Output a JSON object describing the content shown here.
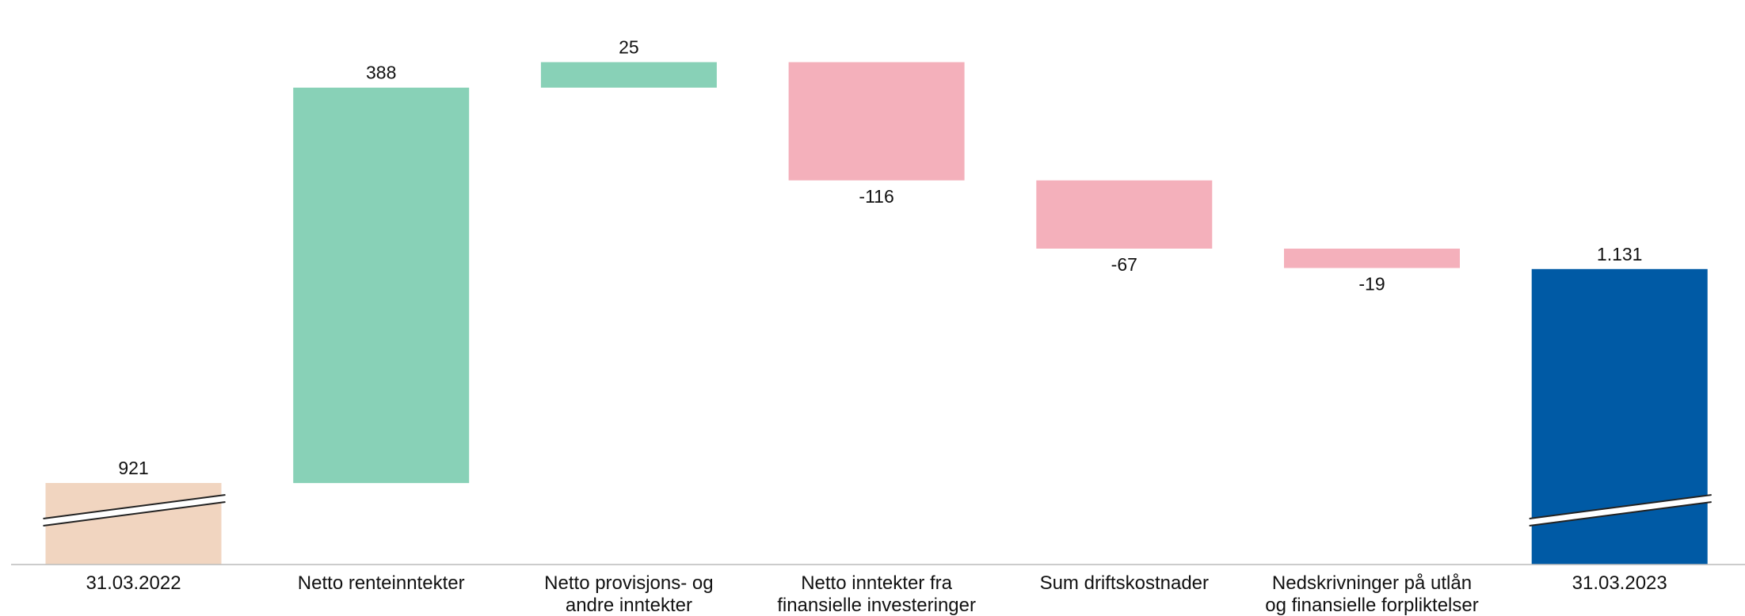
{
  "chart_data": {
    "type": "waterfall",
    "title": "",
    "xlabel": "",
    "ylabel": "",
    "axis_break": true,
    "grid": false,
    "legend": "none",
    "categories": [
      [
        "31.03.2022"
      ],
      [
        "Netto renteinntekter"
      ],
      [
        "Netto provisjons- og",
        "andre inntekter"
      ],
      [
        "Netto inntekter fra",
        "finansielle investeringer"
      ],
      [
        "Sum driftskostnader"
      ],
      [
        "Nedskrivninger på utlån",
        "og finansielle forpliktelser"
      ],
      [
        "31.03.2023"
      ]
    ],
    "steps": [
      {
        "kind": "total",
        "value": 921,
        "label": "921"
      },
      {
        "kind": "delta",
        "value": 388,
        "label": "388"
      },
      {
        "kind": "delta",
        "value": 25,
        "label": "25"
      },
      {
        "kind": "delta",
        "value": -116,
        "label": "-116"
      },
      {
        "kind": "delta",
        "value": -67,
        "label": "-67"
      },
      {
        "kind": "delta",
        "value": -19,
        "label": "-19"
      },
      {
        "kind": "total",
        "value": 1131,
        "label": "1.131"
      }
    ],
    "colors": {
      "start_total": "#F1D5C0",
      "end_total": "#005AA5",
      "increase": "#88D1B7",
      "decrease": "#F4B0BB",
      "axis": "#BBBBBB"
    }
  }
}
